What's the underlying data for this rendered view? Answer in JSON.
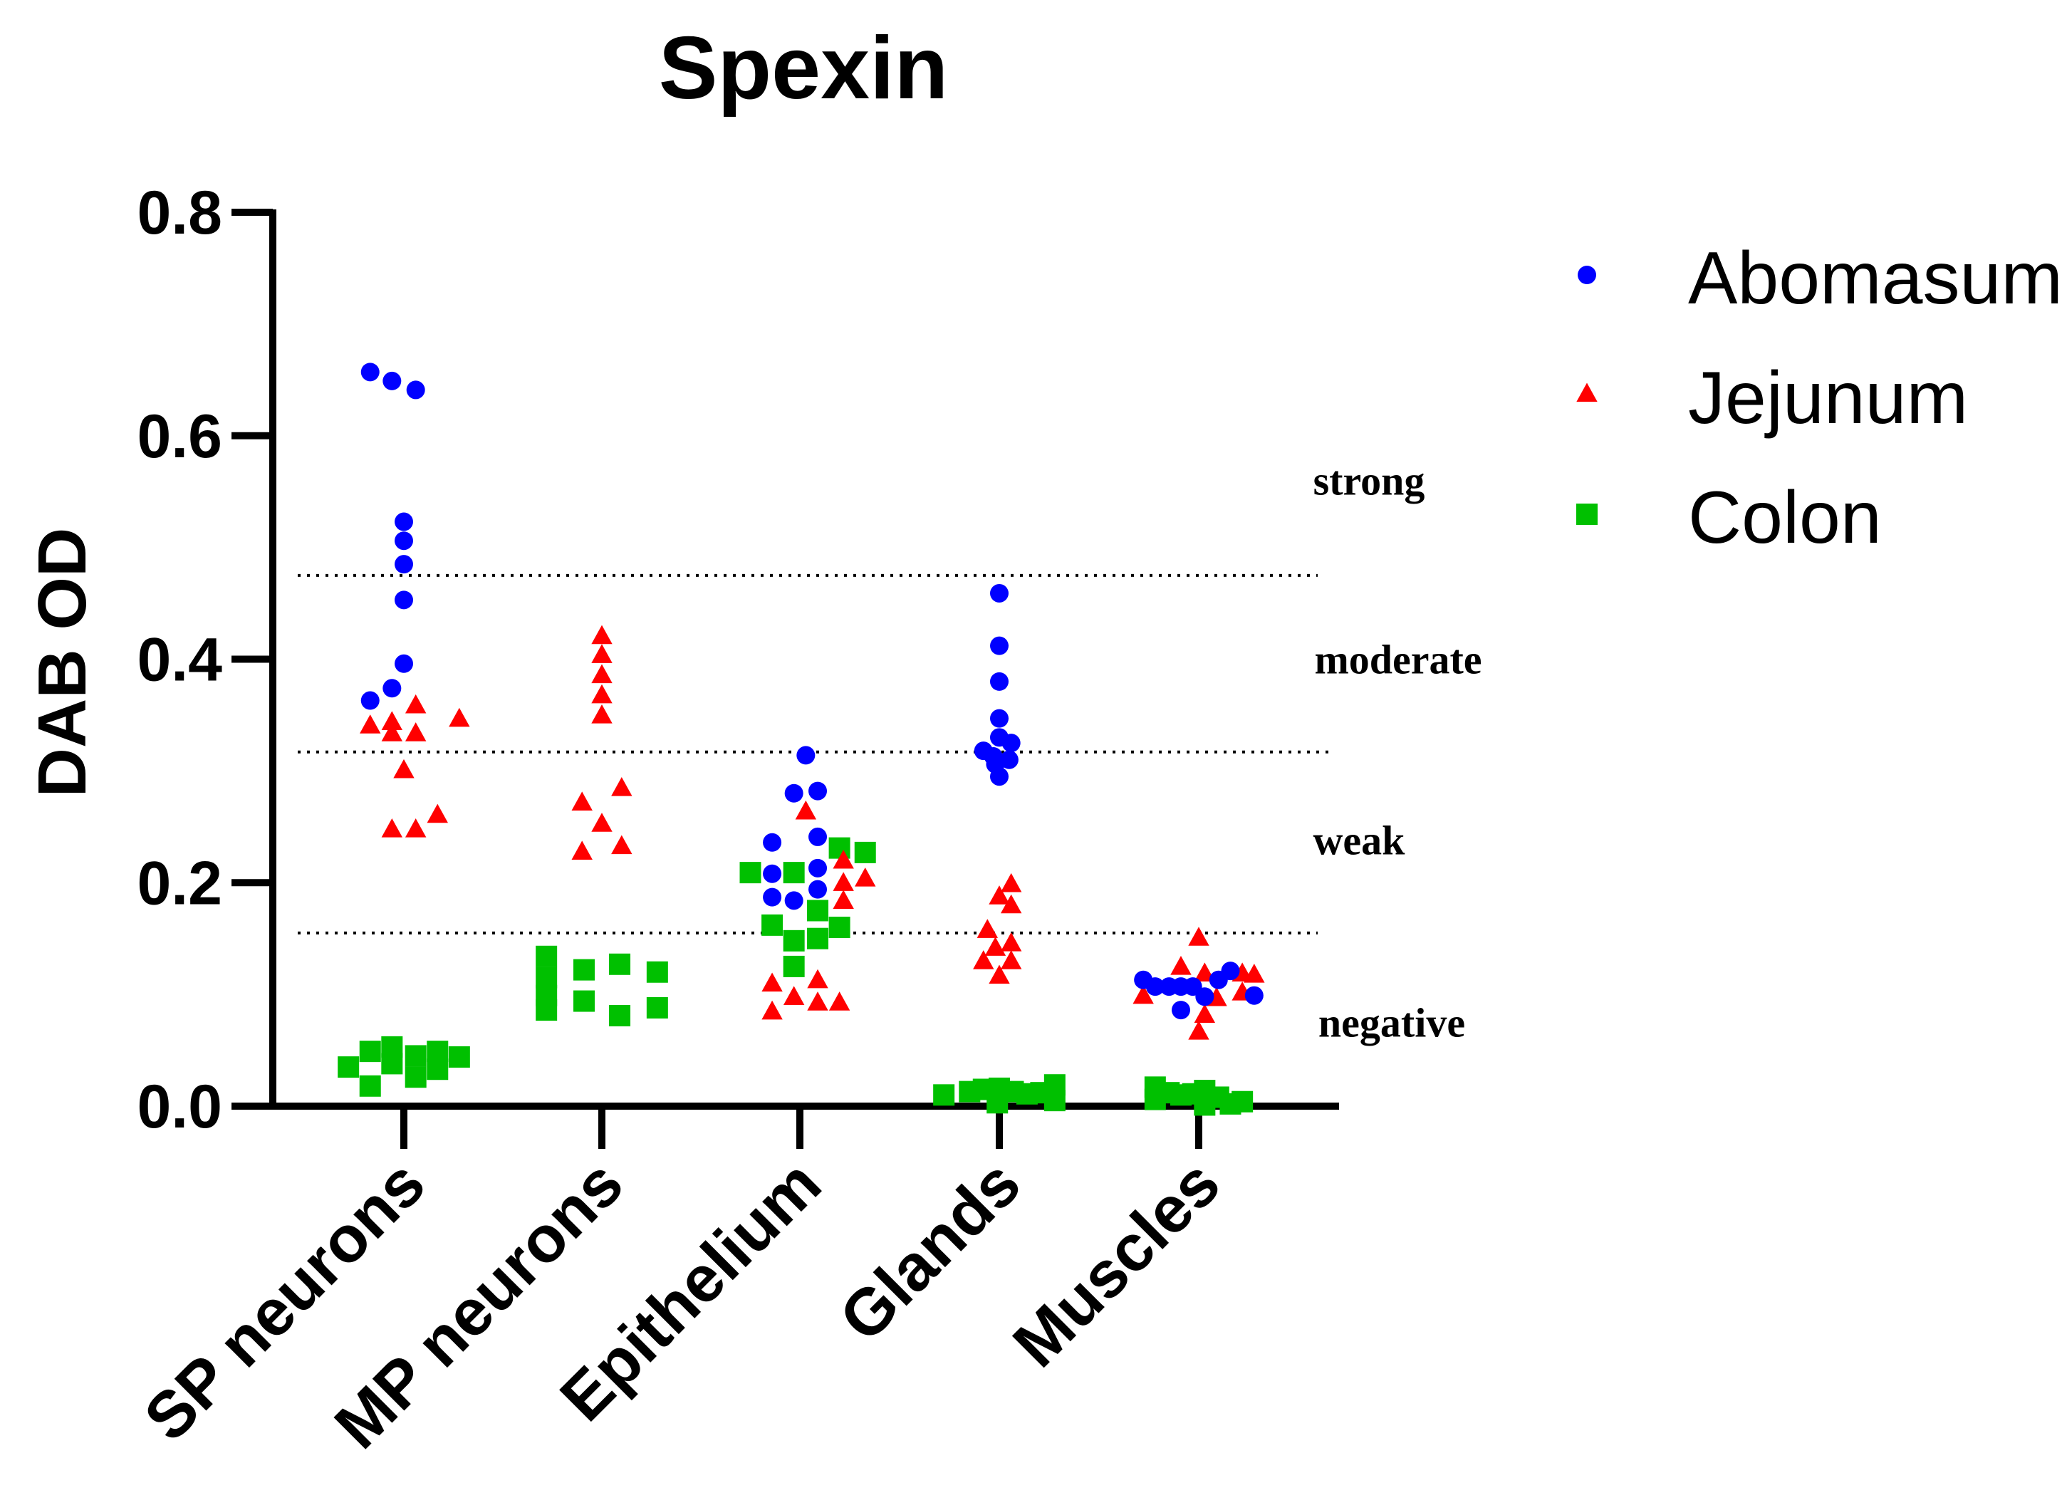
{
  "chart_data": {
    "type": "scatter",
    "title": "Spexin",
    "ylabel": "DAB OD",
    "xlabel": "",
    "ylim": [
      0,
      0.8
    ],
    "yticks": [
      "0.0",
      "0.2",
      "0.4",
      "0.6",
      "0.8"
    ],
    "ytick_values": [
      0,
      0.2,
      0.4,
      0.6,
      0.8
    ],
    "categories": [
      "SP neurons",
      "MP neurons",
      "Epithelium",
      "Glands",
      "Muscles"
    ],
    "legend_position": "top-right",
    "thresholds": [
      {
        "value": 0.475
      },
      {
        "value": 0.317
      },
      {
        "value": 0.155
      }
    ],
    "zones": [
      {
        "label": "strong",
        "value": 0.56
      },
      {
        "label": "moderate",
        "value": 0.4
      },
      {
        "label": "weak",
        "value": 0.238
      },
      {
        "label": "negative",
        "value": 0.075
      }
    ],
    "series": [
      {
        "name": "Abomasum",
        "color": "#0000ff",
        "marker": "circle",
        "points": [
          {
            "cat": 0,
            "offset": -0.17,
            "y": 0.657
          },
          {
            "cat": 0,
            "offset": -0.06,
            "y": 0.649
          },
          {
            "cat": 0,
            "offset": 0.06,
            "y": 0.641
          },
          {
            "cat": 0,
            "offset": 0.0,
            "y": 0.523
          },
          {
            "cat": 0,
            "offset": 0.0,
            "y": 0.506
          },
          {
            "cat": 0,
            "offset": 0.0,
            "y": 0.485
          },
          {
            "cat": 0,
            "offset": 0.0,
            "y": 0.453
          },
          {
            "cat": 0,
            "offset": 0.0,
            "y": 0.396
          },
          {
            "cat": 0,
            "offset": -0.06,
            "y": 0.374
          },
          {
            "cat": 0,
            "offset": -0.17,
            "y": 0.363
          },
          {
            "cat": 2,
            "offset": 0.03,
            "y": 0.314
          },
          {
            "cat": 2,
            "offset": -0.03,
            "y": 0.28
          },
          {
            "cat": 2,
            "offset": 0.09,
            "y": 0.282
          },
          {
            "cat": 2,
            "offset": 0.09,
            "y": 0.241
          },
          {
            "cat": 2,
            "offset": -0.14,
            "y": 0.236
          },
          {
            "cat": 2,
            "offset": 0.09,
            "y": 0.213
          },
          {
            "cat": 2,
            "offset": -0.14,
            "y": 0.208
          },
          {
            "cat": 2,
            "offset": 0.09,
            "y": 0.194
          },
          {
            "cat": 2,
            "offset": -0.14,
            "y": 0.187
          },
          {
            "cat": 2,
            "offset": -0.03,
            "y": 0.184
          },
          {
            "cat": 3,
            "offset": 0.0,
            "y": 0.459
          },
          {
            "cat": 3,
            "offset": 0.0,
            "y": 0.412
          },
          {
            "cat": 3,
            "offset": 0.0,
            "y": 0.38
          },
          {
            "cat": 3,
            "offset": 0.0,
            "y": 0.347
          },
          {
            "cat": 3,
            "offset": 0.0,
            "y": 0.33
          },
          {
            "cat": 3,
            "offset": 0.06,
            "y": 0.325
          },
          {
            "cat": 3,
            "offset": -0.08,
            "y": 0.318
          },
          {
            "cat": 3,
            "offset": -0.03,
            "y": 0.313
          },
          {
            "cat": 3,
            "offset": 0.05,
            "y": 0.31
          },
          {
            "cat": 3,
            "offset": -0.02,
            "y": 0.306
          },
          {
            "cat": 3,
            "offset": 0.0,
            "y": 0.295
          },
          {
            "cat": 4,
            "offset": -0.28,
            "y": 0.113
          },
          {
            "cat": 4,
            "offset": -0.22,
            "y": 0.107
          },
          {
            "cat": 4,
            "offset": -0.15,
            "y": 0.107
          },
          {
            "cat": 4,
            "offset": -0.09,
            "y": 0.107
          },
          {
            "cat": 4,
            "offset": -0.03,
            "y": 0.107
          },
          {
            "cat": 4,
            "offset": 0.1,
            "y": 0.113
          },
          {
            "cat": 4,
            "offset": 0.16,
            "y": 0.121
          },
          {
            "cat": 4,
            "offset": 0.03,
            "y": 0.098
          },
          {
            "cat": 4,
            "offset": -0.09,
            "y": 0.086
          },
          {
            "cat": 4,
            "offset": 0.28,
            "y": 0.099
          }
        ]
      },
      {
        "name": "Jejunum",
        "color": "#ff0000",
        "marker": "triangle",
        "points": [
          {
            "cat": 0,
            "offset": 0.06,
            "y": 0.358
          },
          {
            "cat": 0,
            "offset": 0.28,
            "y": 0.346
          },
          {
            "cat": 0,
            "offset": -0.17,
            "y": 0.34
          },
          {
            "cat": 0,
            "offset": -0.06,
            "y": 0.343
          },
          {
            "cat": 0,
            "offset": -0.06,
            "y": 0.333
          },
          {
            "cat": 0,
            "offset": 0.06,
            "y": 0.333
          },
          {
            "cat": 0,
            "offset": 0.0,
            "y": 0.3
          },
          {
            "cat": 0,
            "offset": 0.17,
            "y": 0.26
          },
          {
            "cat": 0,
            "offset": -0.06,
            "y": 0.247
          },
          {
            "cat": 0,
            "offset": 0.06,
            "y": 0.247
          },
          {
            "cat": 1,
            "offset": 0.0,
            "y": 0.42
          },
          {
            "cat": 1,
            "offset": 0.0,
            "y": 0.403
          },
          {
            "cat": 1,
            "offset": 0.0,
            "y": 0.385
          },
          {
            "cat": 1,
            "offset": 0.0,
            "y": 0.367
          },
          {
            "cat": 1,
            "offset": 0.0,
            "y": 0.349
          },
          {
            "cat": 1,
            "offset": 0.1,
            "y": 0.284
          },
          {
            "cat": 1,
            "offset": -0.1,
            "y": 0.271
          },
          {
            "cat": 1,
            "offset": 0.0,
            "y": 0.252
          },
          {
            "cat": 1,
            "offset": 0.1,
            "y": 0.232
          },
          {
            "cat": 1,
            "offset": -0.1,
            "y": 0.227
          },
          {
            "cat": 2,
            "offset": 0.03,
            "y": 0.263
          },
          {
            "cat": 2,
            "offset": 0.22,
            "y": 0.219
          },
          {
            "cat": 2,
            "offset": 0.33,
            "y": 0.203
          },
          {
            "cat": 2,
            "offset": 0.22,
            "y": 0.199
          },
          {
            "cat": 2,
            "offset": 0.22,
            "y": 0.183
          },
          {
            "cat": 2,
            "offset": -0.14,
            "y": 0.109
          },
          {
            "cat": 2,
            "offset": 0.09,
            "y": 0.112
          },
          {
            "cat": 2,
            "offset": -0.03,
            "y": 0.097
          },
          {
            "cat": 2,
            "offset": -0.14,
            "y": 0.084
          },
          {
            "cat": 2,
            "offset": 0.09,
            "y": 0.092
          },
          {
            "cat": 2,
            "offset": 0.2,
            "y": 0.092
          },
          {
            "cat": 3,
            "offset": 0.06,
            "y": 0.198
          },
          {
            "cat": 3,
            "offset": 0.0,
            "y": 0.187
          },
          {
            "cat": 3,
            "offset": 0.06,
            "y": 0.179
          },
          {
            "cat": 3,
            "offset": -0.06,
            "y": 0.157
          },
          {
            "cat": 3,
            "offset": 0.06,
            "y": 0.145
          },
          {
            "cat": 3,
            "offset": -0.02,
            "y": 0.141
          },
          {
            "cat": 3,
            "offset": -0.08,
            "y": 0.129
          },
          {
            "cat": 3,
            "offset": 0.06,
            "y": 0.129
          },
          {
            "cat": 3,
            "offset": 0.0,
            "y": 0.116
          },
          {
            "cat": 4,
            "offset": 0.0,
            "y": 0.15
          },
          {
            "cat": 4,
            "offset": -0.09,
            "y": 0.124
          },
          {
            "cat": 4,
            "offset": 0.03,
            "y": 0.118
          },
          {
            "cat": 4,
            "offset": 0.22,
            "y": 0.118
          },
          {
            "cat": 4,
            "offset": 0.28,
            "y": 0.117
          },
          {
            "cat": 4,
            "offset": -0.28,
            "y": 0.098
          },
          {
            "cat": 4,
            "offset": 0.09,
            "y": 0.096
          },
          {
            "cat": 4,
            "offset": 0.22,
            "y": 0.101
          },
          {
            "cat": 4,
            "offset": 0.03,
            "y": 0.081
          },
          {
            "cat": 4,
            "offset": 0.0,
            "y": 0.066
          }
        ]
      },
      {
        "name": "Colon",
        "color": "#00c000",
        "marker": "square",
        "points": [
          {
            "cat": 0,
            "offset": -0.28,
            "y": 0.035
          },
          {
            "cat": 0,
            "offset": -0.17,
            "y": 0.049
          },
          {
            "cat": 0,
            "offset": -0.06,
            "y": 0.053
          },
          {
            "cat": 0,
            "offset": 0.06,
            "y": 0.045
          },
          {
            "cat": 0,
            "offset": 0.17,
            "y": 0.049
          },
          {
            "cat": 0,
            "offset": 0.28,
            "y": 0.044
          },
          {
            "cat": 0,
            "offset": -0.06,
            "y": 0.038
          },
          {
            "cat": 0,
            "offset": 0.17,
            "y": 0.033
          },
          {
            "cat": 0,
            "offset": 0.06,
            "y": 0.026
          },
          {
            "cat": 0,
            "offset": -0.17,
            "y": 0.018
          },
          {
            "cat": 1,
            "offset": -0.28,
            "y": 0.134
          },
          {
            "cat": 1,
            "offset": -0.28,
            "y": 0.115
          },
          {
            "cat": 1,
            "offset": -0.28,
            "y": 0.099
          },
          {
            "cat": 1,
            "offset": -0.28,
            "y": 0.086
          },
          {
            "cat": 1,
            "offset": -0.09,
            "y": 0.122
          },
          {
            "cat": 1,
            "offset": -0.09,
            "y": 0.094
          },
          {
            "cat": 1,
            "offset": 0.09,
            "y": 0.127
          },
          {
            "cat": 1,
            "offset": 0.09,
            "y": 0.081
          },
          {
            "cat": 1,
            "offset": 0.28,
            "y": 0.12
          },
          {
            "cat": 1,
            "offset": 0.28,
            "y": 0.088
          },
          {
            "cat": 2,
            "offset": 0.2,
            "y": 0.231
          },
          {
            "cat": 2,
            "offset": 0.33,
            "y": 0.227
          },
          {
            "cat": 2,
            "offset": -0.25,
            "y": 0.209
          },
          {
            "cat": 2,
            "offset": -0.03,
            "y": 0.209
          },
          {
            "cat": 2,
            "offset": 0.09,
            "y": 0.175
          },
          {
            "cat": 2,
            "offset": -0.14,
            "y": 0.162
          },
          {
            "cat": 2,
            "offset": 0.2,
            "y": 0.16
          },
          {
            "cat": 2,
            "offset": 0.09,
            "y": 0.15
          },
          {
            "cat": 2,
            "offset": -0.03,
            "y": 0.148
          },
          {
            "cat": 2,
            "offset": -0.03,
            "y": 0.125
          },
          {
            "cat": 3,
            "offset": -0.28,
            "y": 0.01
          },
          {
            "cat": 3,
            "offset": -0.15,
            "y": 0.013
          },
          {
            "cat": 3,
            "offset": -0.08,
            "y": 0.015
          },
          {
            "cat": 3,
            "offset": 0.0,
            "y": 0.016
          },
          {
            "cat": 3,
            "offset": 0.07,
            "y": 0.013
          },
          {
            "cat": 3,
            "offset": 0.14,
            "y": 0.011
          },
          {
            "cat": 3,
            "offset": 0.21,
            "y": 0.012
          },
          {
            "cat": 3,
            "offset": 0.28,
            "y": 0.019
          },
          {
            "cat": 3,
            "offset": -0.01,
            "y": 0.003
          },
          {
            "cat": 3,
            "offset": 0.28,
            "y": 0.005
          },
          {
            "cat": 4,
            "offset": -0.22,
            "y": 0.017
          },
          {
            "cat": 4,
            "offset": -0.15,
            "y": 0.012
          },
          {
            "cat": 4,
            "offset": -0.09,
            "y": 0.01
          },
          {
            "cat": 4,
            "offset": 0.03,
            "y": 0.014
          },
          {
            "cat": 4,
            "offset": 0.1,
            "y": 0.008
          },
          {
            "cat": 4,
            "offset": 0.03,
            "y": 0.001
          },
          {
            "cat": 4,
            "offset": -0.22,
            "y": 0.006
          },
          {
            "cat": 4,
            "offset": 0.16,
            "y": 0.002
          },
          {
            "cat": 4,
            "offset": 0.22,
            "y": 0.004
          },
          {
            "cat": 4,
            "offset": -0.03,
            "y": 0.011
          }
        ]
      }
    ]
  }
}
